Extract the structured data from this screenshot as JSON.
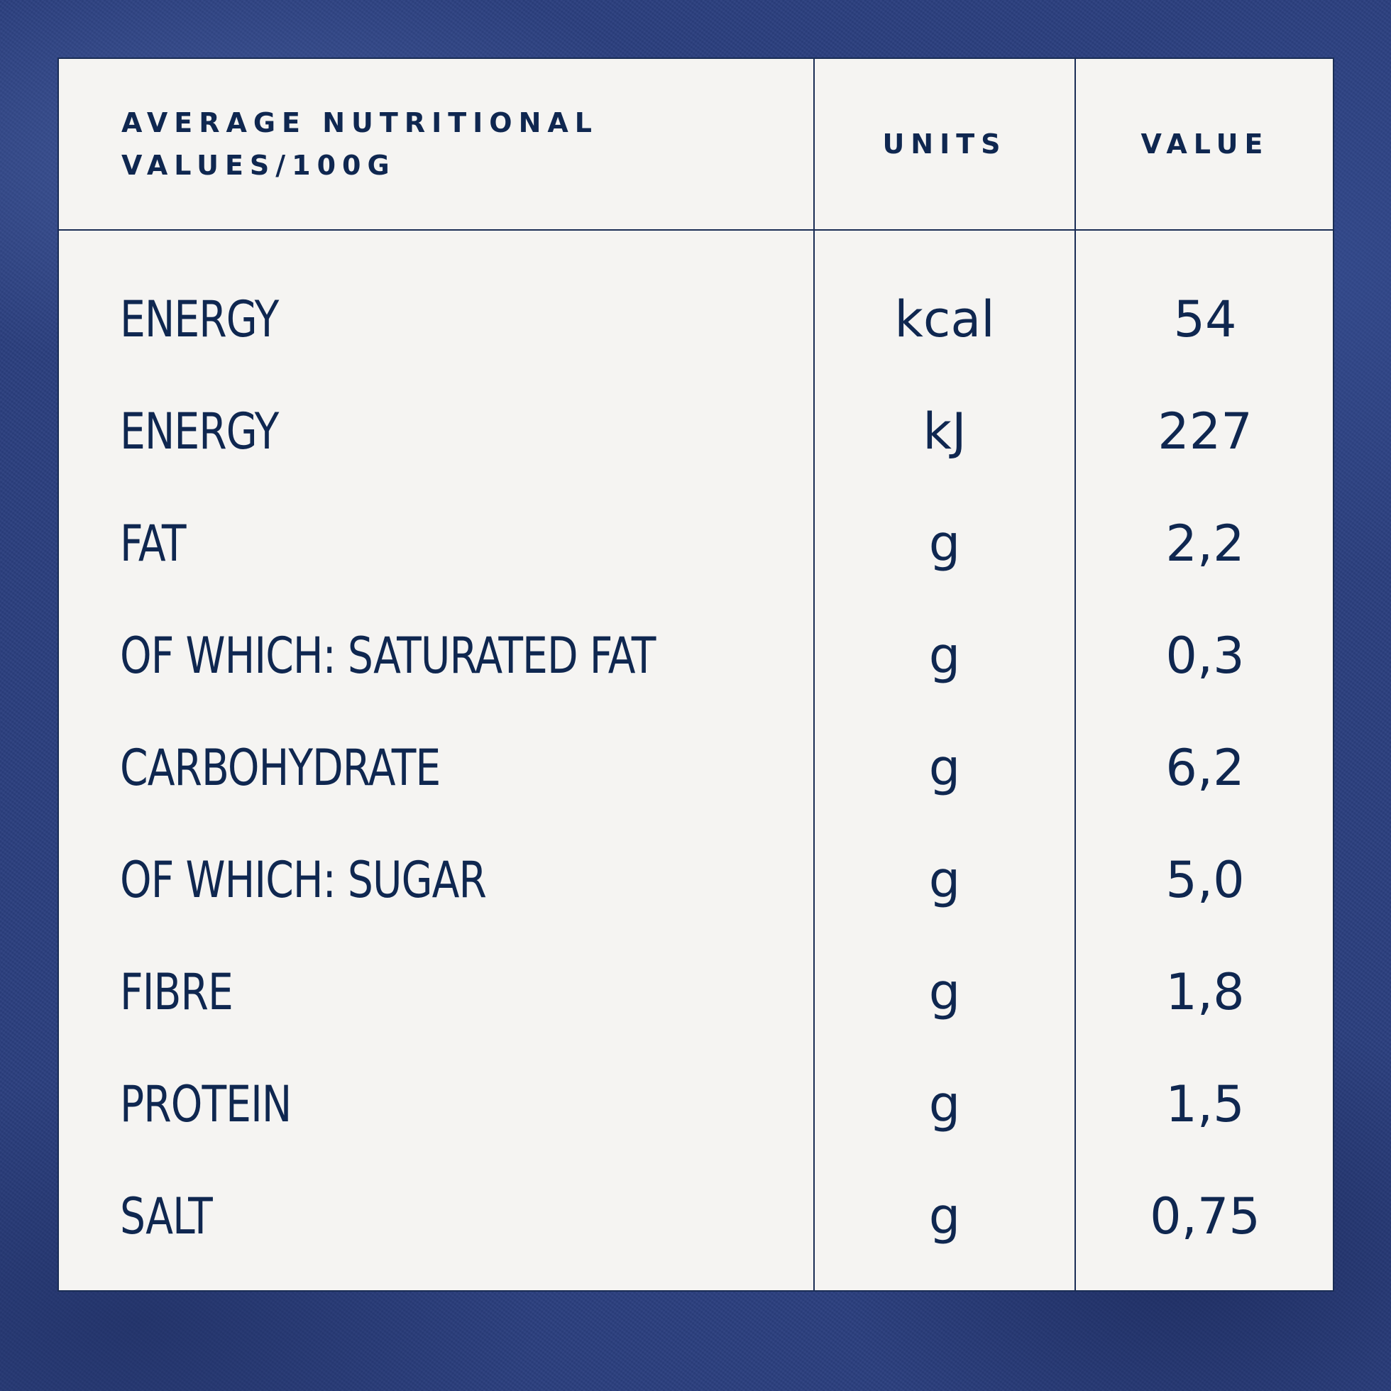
{
  "header": {
    "name_line1": "AVERAGE NUTRITIONAL",
    "name_line2": "VALUES/100G",
    "units": "UNITS",
    "value": "VALUE"
  },
  "rows": [
    {
      "name": "ENERGY",
      "units": "kcal",
      "value": "54"
    },
    {
      "name": "ENERGY",
      "units": "kJ",
      "value": "227"
    },
    {
      "name": "FAT",
      "units": "g",
      "value": "2,2"
    },
    {
      "name": "OF WHICH: SATURATED FAT",
      "units": "g",
      "value": "0,3"
    },
    {
      "name": "CARBOHYDRATE",
      "units": "g",
      "value": "6,2"
    },
    {
      "name": "OF WHICH: SUGAR",
      "units": "g",
      "value": "5,0"
    },
    {
      "name": "FIBRE",
      "units": "g",
      "value": "1,8"
    },
    {
      "name": "PROTEIN",
      "units": "g",
      "value": "1,5"
    },
    {
      "name": "SALT",
      "units": "g",
      "value": "0,75"
    }
  ],
  "colors": {
    "background": "#2b3f7f",
    "panel": "#f5f4f2",
    "text": "#0f2750",
    "rule": "#1a2d55"
  }
}
